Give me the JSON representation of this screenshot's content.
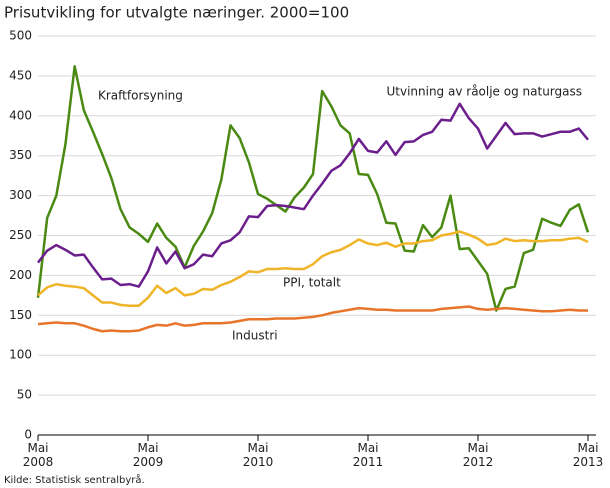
{
  "chart_data": {
    "type": "line",
    "title": "Prisutvikling for utvalgte næringer. 2000=100",
    "source": "Kilde: Statistisk sentralbyrå.",
    "categories": [
      "Mai\n2008",
      null,
      null,
      null,
      null,
      null,
      null,
      null,
      null,
      null,
      null,
      null,
      "Mai\n2009",
      null,
      null,
      null,
      null,
      null,
      null,
      null,
      null,
      null,
      null,
      null,
      "Mai\n2010",
      null,
      null,
      null,
      null,
      null,
      null,
      null,
      null,
      null,
      null,
      null,
      "Mai\n2011",
      null,
      null,
      null,
      null,
      null,
      null,
      null,
      null,
      null,
      null,
      null,
      "Mai\n2012",
      null,
      null,
      null,
      null,
      null,
      null,
      null,
      null,
      null,
      null,
      null,
      "Mai\n2013"
    ],
    "ylim": [
      0,
      500
    ],
    "yticks": [
      0,
      50,
      100,
      150,
      200,
      250,
      300,
      350,
      400,
      450,
      500
    ],
    "grid": true,
    "series": [
      {
        "name": "Kraftforsyning",
        "color": "#4a8a13",
        "values": [
          172,
          272,
          300,
          365,
          462,
          407,
          380,
          352,
          322,
          283,
          260,
          252,
          242,
          265,
          247,
          236,
          210,
          237,
          255,
          278,
          320,
          388,
          372,
          342,
          302,
          296,
          288,
          280,
          298,
          310,
          327,
          431,
          412,
          388,
          378,
          327,
          326,
          302,
          266,
          265,
          231,
          230,
          263,
          248,
          260,
          300,
          233,
          234,
          218,
          202,
          156,
          183,
          186,
          228,
          232,
          271,
          266,
          262,
          282,
          289,
          254
        ]
      },
      {
        "name": "Utvinning av råolje og naturgass",
        "color": "#6b1f8c",
        "values": [
          216,
          231,
          238,
          232,
          225,
          226,
          210,
          195,
          196,
          188,
          189,
          186,
          205,
          235,
          215,
          230,
          209,
          214,
          226,
          224,
          240,
          244,
          254,
          274,
          273,
          287,
          288,
          287,
          285,
          283,
          300,
          315,
          331,
          338,
          353,
          371,
          356,
          354,
          368,
          351,
          367,
          368,
          376,
          380,
          395,
          394,
          415,
          397,
          384,
          359,
          375,
          391,
          377,
          378,
          378,
          374,
          377,
          380,
          380,
          384,
          370
        ]
      },
      {
        "name": "PPI, totalt",
        "color": "#f0b429",
        "values": [
          175,
          185,
          189,
          187,
          186,
          184,
          175,
          166,
          166,
          163,
          162,
          162,
          172,
          187,
          178,
          184,
          175,
          177,
          183,
          182,
          188,
          192,
          198,
          205,
          204,
          208,
          208,
          209,
          208,
          208,
          214,
          224,
          229,
          232,
          238,
          245,
          240,
          238,
          241,
          236,
          240,
          240,
          243,
          244,
          250,
          252,
          255,
          251,
          246,
          238,
          240,
          246,
          243,
          244,
          243,
          243,
          244,
          244,
          246,
          247,
          242
        ]
      },
      {
        "name": "Industri",
        "color": "#e8742a",
        "values": [
          139,
          140,
          141,
          140,
          140,
          137,
          133,
          130,
          131,
          130,
          130,
          131,
          135,
          138,
          137,
          140,
          137,
          138,
          140,
          140,
          140,
          141,
          143,
          145,
          145,
          145,
          146,
          146,
          146,
          147,
          148,
          150,
          153,
          155,
          157,
          159,
          158,
          157,
          157,
          156,
          156,
          156,
          156,
          156,
          158,
          159,
          160,
          161,
          158,
          157,
          158,
          159,
          158,
          157,
          156,
          155,
          155,
          156,
          157,
          156,
          156
        ]
      }
    ]
  }
}
